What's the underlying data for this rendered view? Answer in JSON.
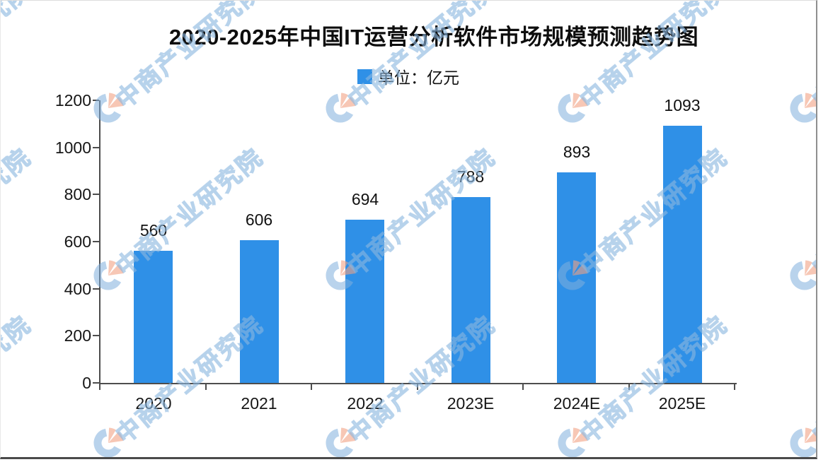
{
  "watermark": {
    "text": "中商产业研究院",
    "logo": "pie-logo"
  },
  "chart_data": {
    "type": "bar",
    "title": "2020-2025年中国IT运营分析软件市场规模预测趋势图",
    "legend": "单位：亿元",
    "categories": [
      "2020",
      "2021",
      "2022",
      "2023E",
      "2024E",
      "2025E"
    ],
    "values": [
      560,
      606,
      694,
      788,
      893,
      1093
    ],
    "xlabel": "",
    "ylabel": "",
    "ylim": [
      0,
      1200
    ],
    "yticks": [
      0,
      200,
      400,
      600,
      800,
      1000,
      1200
    ],
    "bar_color": "#2F90E7",
    "axis_color": "#4d4d4d",
    "grid": false,
    "legend_position": "top"
  }
}
